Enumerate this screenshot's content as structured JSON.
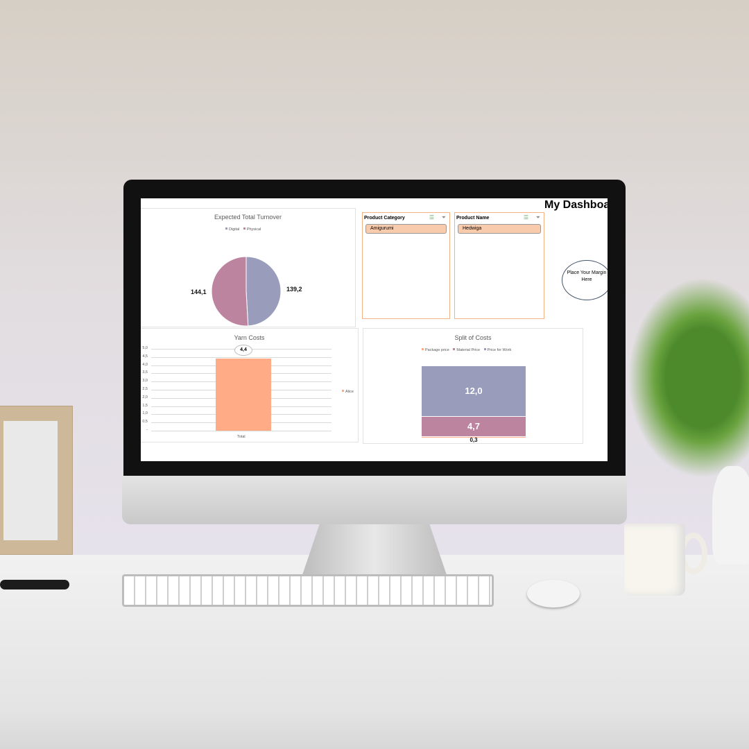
{
  "dashboard": {
    "title": "My Dashboard",
    "callout": "Place Your Margin Here"
  },
  "slicers": [
    {
      "title": "Product Category",
      "selected": "Amigurumi",
      "icons": [
        "multi-select-icon",
        "clear-filter-icon"
      ]
    },
    {
      "title": "Product Name",
      "selected": "Hedwiga",
      "icons": [
        "multi-select-icon",
        "clear-filter-icon"
      ]
    }
  ],
  "chart_data": [
    {
      "type": "pie",
      "title": "Expected Total Turnover",
      "legend_position": "top",
      "categories": [
        "Digital",
        "Physical"
      ],
      "values": [
        139.2,
        144.1
      ],
      "labels": [
        "139,2",
        "144,1"
      ],
      "colors": [
        "#9a9cbc",
        "#bd84a0"
      ]
    },
    {
      "type": "bar",
      "title": "Yarn Costs",
      "categories": [
        "Total"
      ],
      "series": [
        {
          "name": "Alice",
          "values": [
            4.4
          ]
        }
      ],
      "data_label": "4,4",
      "ylim": [
        0,
        5
      ],
      "yticks": [
        "-",
        "0,5",
        "1,0",
        "1,5",
        "2,0",
        "2,5",
        "3,0",
        "3,5",
        "4,0",
        "4,5",
        "5,0"
      ],
      "grid": true,
      "legend_position": "right",
      "color": "#ffab86"
    },
    {
      "type": "bar",
      "stacked": true,
      "title": "Split of Costs",
      "legend_position": "top",
      "series": [
        {
          "name": "Package price",
          "values": [
            0.3
          ],
          "label": "0,3",
          "color": "#ffab86"
        },
        {
          "name": "Material Price",
          "values": [
            4.7
          ],
          "label": "4,7",
          "color": "#bd84a0"
        },
        {
          "name": "Price for Work",
          "values": [
            12.0
          ],
          "label": "12,0",
          "color": "#9a9cbc"
        }
      ]
    }
  ]
}
